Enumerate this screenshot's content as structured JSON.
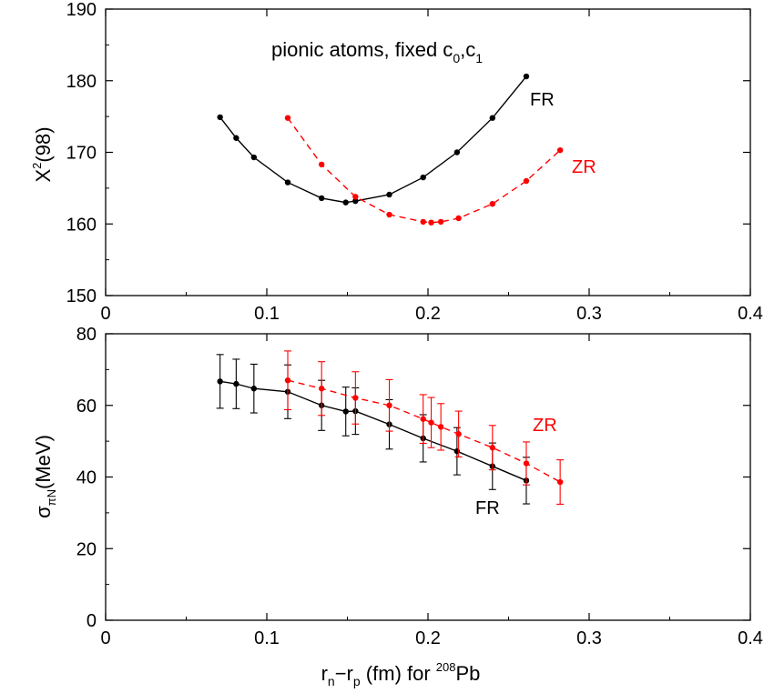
{
  "chart_data": [
    {
      "type": "line",
      "annotation": "pionic atoms, fixed c",
      "annotation_sub1": "0",
      "annotation_mid": ",c",
      "annotation_sub2": "1",
      "xlabel": "",
      "ylabel_base": "X",
      "ylabel_sup": "2",
      "ylabel_rest": "(98)",
      "xlim": [
        0,
        0.4
      ],
      "ylim": [
        150,
        190
      ],
      "x_ticks": [
        "0",
        "0.1",
        "0.2",
        "0.3",
        "0.4"
      ],
      "y_ticks": [
        "150",
        "160",
        "170",
        "180",
        "190"
      ],
      "series": [
        {
          "name": "FR",
          "color": "#000000",
          "dashed": false,
          "x": [
            0.071,
            0.081,
            0.092,
            0.113,
            0.134,
            0.149,
            0.155,
            0.176,
            0.197,
            0.218,
            0.24,
            0.261
          ],
          "y": [
            174.9,
            172.0,
            169.3,
            165.8,
            163.6,
            163.0,
            163.2,
            164.1,
            166.5,
            170.0,
            174.8,
            180.6
          ]
        },
        {
          "name": "ZR",
          "color": "#ff0000",
          "dashed": true,
          "x": [
            0.113,
            0.134,
            0.155,
            0.176,
            0.197,
            0.202,
            0.208,
            0.219,
            0.24,
            0.261,
            0.282
          ],
          "y": [
            174.8,
            168.3,
            163.8,
            161.3,
            160.3,
            160.2,
            160.3,
            160.8,
            162.8,
            166.0,
            170.3
          ]
        }
      ]
    },
    {
      "type": "line",
      "xlabel_main": "r",
      "xlabel_sub1": "n",
      "xlabel_dash": "−r",
      "xlabel_sub2": "p",
      "xlabel_rest": " (fm) for ",
      "xlabel_sup": "208",
      "xlabel_end": "Pb",
      "ylabel_sigma": "σ",
      "ylabel_sub": "πN",
      "ylabel_rest": "(MeV)",
      "xlim": [
        0,
        0.4
      ],
      "ylim": [
        0,
        80
      ],
      "x_ticks": [
        "0",
        "0.1",
        "0.2",
        "0.3",
        "0.4"
      ],
      "y_ticks": [
        "0",
        "20",
        "40",
        "60",
        "80"
      ],
      "series": [
        {
          "name": "FR",
          "color": "#000000",
          "dashed": false,
          "x": [
            0.071,
            0.081,
            0.092,
            0.113,
            0.134,
            0.149,
            0.155,
            0.176,
            0.197,
            0.218,
            0.24,
            0.261
          ],
          "y": [
            66.7,
            66.0,
            64.7,
            63.8,
            60.0,
            58.3,
            58.4,
            54.7,
            50.8,
            47.2,
            43.0,
            39.0
          ],
          "err": [
            7.5,
            6.9,
            6.8,
            7.5,
            7.0,
            6.8,
            6.5,
            6.9,
            6.6,
            6.6,
            6.5,
            6.5
          ]
        },
        {
          "name": "ZR",
          "color": "#ff0000",
          "dashed": true,
          "x": [
            0.113,
            0.134,
            0.155,
            0.176,
            0.197,
            0.202,
            0.208,
            0.219,
            0.24,
            0.261,
            0.282
          ],
          "y": [
            67.0,
            64.7,
            62.1,
            60.0,
            56.2,
            55.2,
            54.0,
            52.0,
            48.2,
            43.8,
            38.6
          ],
          "err": [
            8.2,
            7.5,
            7.3,
            7.2,
            6.8,
            7.0,
            6.5,
            6.4,
            6.2,
            6.0,
            6.2
          ]
        }
      ],
      "labels": {
        "FR": "FR",
        "ZR": "ZR"
      }
    }
  ],
  "top_labels": {
    "FR": "FR",
    "ZR": "ZR"
  }
}
